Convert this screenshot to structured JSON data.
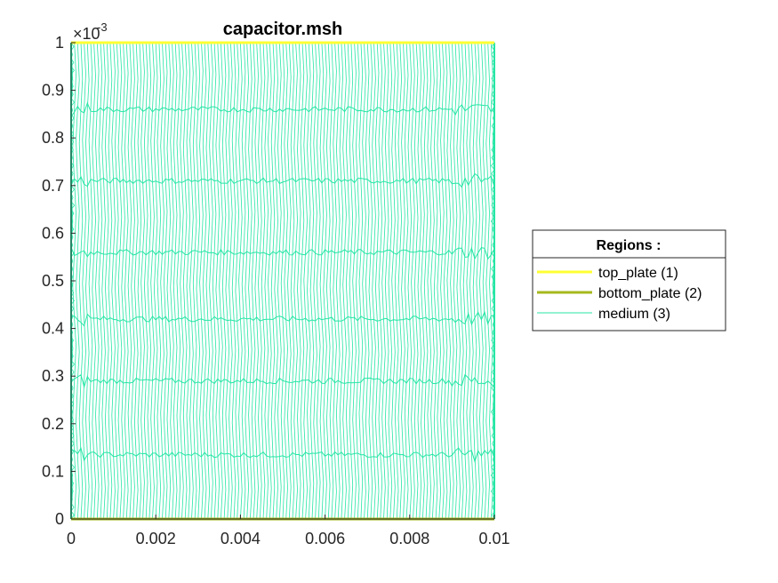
{
  "chart_data": {
    "type": "line",
    "title": "capacitor.msh",
    "xlabel": "",
    "ylabel": "",
    "xlim": [
      0,
      0.01
    ],
    "ylim": [
      0,
      0.001
    ],
    "x_ticks": [
      0,
      0.002,
      0.004,
      0.006,
      0.008,
      0.01
    ],
    "x_tick_labels": [
      "0",
      "0.002",
      "0.004",
      "0.006",
      "0.008",
      "0.01"
    ],
    "y_ticks": [
      0,
      0.0001,
      0.0002,
      0.0003,
      0.0004,
      0.0005,
      0.0006,
      0.0007,
      0.0008,
      0.0009,
      0.001
    ],
    "y_tick_labels": [
      "0",
      "0.1",
      "0.2",
      "0.3",
      "0.4",
      "0.5",
      "0.6",
      "0.7",
      "0.8",
      "0.9",
      "1"
    ],
    "y_exponent_base": "×10",
    "y_exponent_power": "-3",
    "grid": false,
    "legend": {
      "title": "Regions :",
      "placement": "outside-right",
      "entries": [
        {
          "label": "top_plate (1)",
          "color": "#ffff33",
          "width": 3
        },
        {
          "label": "bottom_plate (2)",
          "color": "#a6b81c",
          "width": 3
        },
        {
          "label": "medium (3)",
          "color": "#26e6a6",
          "width": 1
        }
      ]
    },
    "series": [
      {
        "name": "top_plate (1)",
        "color": "#ffff33",
        "x": [
          0,
          0.01
        ],
        "y": [
          0.001,
          0.001
        ]
      },
      {
        "name": "bottom_plate (2)",
        "color": "#a6b81c",
        "x": [
          0,
          0.01
        ],
        "y": [
          0,
          0
        ]
      },
      {
        "name": "medium (3)",
        "color": "#26e6a6",
        "mesh_columns": 130,
        "mesh_rows": [
          0,
          0.000135,
          0.00029,
          0.00042,
          0.00056,
          0.00071,
          0.00086,
          0.001
        ]
      }
    ]
  }
}
